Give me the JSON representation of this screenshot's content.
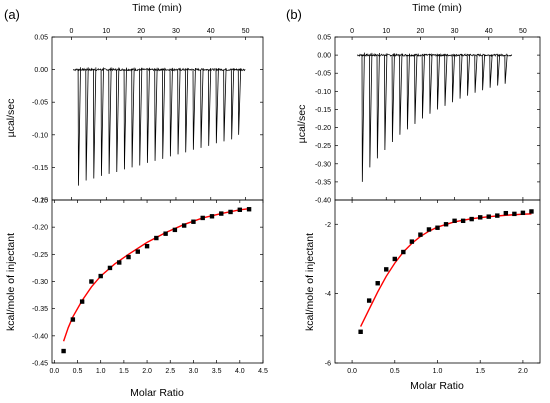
{
  "chart_data": [
    {
      "panel_label": "(a)",
      "type": "scatter",
      "top": {
        "type": "line",
        "xlabel": "Time (min)",
        "ylabel": "µcal/sec",
        "xlim": [
          -5.6,
          55
        ],
        "ylim": [
          -0.2,
          0.05
        ],
        "xticks": [
          "0",
          "10",
          "20",
          "30",
          "40",
          "50"
        ],
        "yticks": [
          "0.05",
          "0.00",
          "-0.05",
          "-0.10",
          "-0.15",
          "-0.20"
        ],
        "baseline": 0.0,
        "injection_times": [
          2.0,
          4.2,
          6.4,
          8.6,
          10.8,
          13.0,
          15.2,
          17.4,
          19.6,
          21.8,
          24.0,
          26.2,
          28.4,
          30.6,
          32.8,
          35.0,
          37.2,
          39.4,
          41.6,
          43.8,
          46.0,
          48.0
        ],
        "peak_minima": [
          -0.178,
          -0.17,
          -0.167,
          -0.163,
          -0.16,
          -0.157,
          -0.153,
          -0.15,
          -0.147,
          -0.143,
          -0.14,
          -0.137,
          -0.133,
          -0.13,
          -0.127,
          -0.123,
          -0.12,
          -0.117,
          -0.113,
          -0.11,
          -0.107,
          -0.1
        ]
      },
      "bottom": {
        "type": "scatter",
        "xlabel": "Molar Ratio",
        "ylabel": "kcal/mole of injectant",
        "xlim": [
          -0.05,
          4.5
        ],
        "ylim": [
          -0.45,
          -0.15
        ],
        "xticks": [
          "0.0",
          "0.5",
          "1.0",
          "1.5",
          "2.0",
          "2.5",
          "3.0",
          "3.5",
          "4.0",
          "4.5"
        ],
        "yticks": [
          "-0.15",
          "-0.20",
          "-0.25",
          "-0.30",
          "-0.35",
          "-0.40",
          "-0.45"
        ],
        "points": {
          "x": [
            0.2,
            0.4,
            0.6,
            0.8,
            1.0,
            1.2,
            1.4,
            1.6,
            1.8,
            2.0,
            2.2,
            2.4,
            2.6,
            2.8,
            3.0,
            3.2,
            3.4,
            3.6,
            3.8,
            4.0,
            4.2
          ],
          "y": [
            -0.428,
            -0.37,
            -0.337,
            -0.3,
            -0.29,
            -0.275,
            -0.265,
            -0.255,
            -0.245,
            -0.235,
            -0.22,
            -0.212,
            -0.205,
            -0.197,
            -0.19,
            -0.183,
            -0.18,
            -0.175,
            -0.172,
            -0.168,
            -0.167
          ]
        },
        "fit": {
          "color": "#ff0000",
          "x": [
            0.2,
            0.3,
            0.4,
            0.6,
            0.8,
            1.0,
            1.3,
            1.6,
            2.0,
            2.4,
            2.8,
            3.2,
            3.6,
            4.0,
            4.2
          ],
          "y": [
            -0.41,
            -0.385,
            -0.365,
            -0.335,
            -0.31,
            -0.29,
            -0.268,
            -0.25,
            -0.228,
            -0.21,
            -0.195,
            -0.183,
            -0.175,
            -0.168,
            -0.166
          ]
        }
      }
    },
    {
      "panel_label": "(b)",
      "type": "scatter",
      "top": {
        "type": "line",
        "xlabel": "Time (min)",
        "ylabel": "µcal/sec",
        "xlim": [
          -5,
          55
        ],
        "ylim": [
          -0.4,
          0.05
        ],
        "xticks": [
          "0",
          "10",
          "20",
          "30",
          "40",
          "50"
        ],
        "yticks": [
          "0.05",
          "0.00",
          "-0.05",
          "-0.10",
          "-0.15",
          "-0.20",
          "-0.25",
          "-0.30",
          "-0.35",
          "-0.40"
        ],
        "baseline": 0.0,
        "injection_times": [
          3.0,
          5.2,
          7.4,
          9.6,
          11.8,
          14.0,
          16.2,
          18.4,
          20.6,
          22.8,
          25.0,
          27.2,
          29.4,
          31.6,
          33.8,
          36.0,
          38.2,
          40.4,
          42.6,
          44.8
        ],
        "peak_minima": [
          -0.35,
          -0.31,
          -0.285,
          -0.262,
          -0.24,
          -0.22,
          -0.205,
          -0.19,
          -0.175,
          -0.162,
          -0.15,
          -0.14,
          -0.13,
          -0.12,
          -0.112,
          -0.104,
          -0.097,
          -0.09,
          -0.084,
          -0.079
        ]
      },
      "bottom": {
        "type": "scatter",
        "xlabel": "Molar Ratio",
        "ylabel": "kcal/mole of injectant",
        "xlim": [
          -0.2,
          2.2
        ],
        "ylim": [
          -6,
          -1.3
        ],
        "xticks": [
          "0.0",
          "0.5",
          "1.0",
          "1.5",
          "2.0"
        ],
        "yticks": [
          "-2",
          "-4",
          "-6"
        ],
        "points": {
          "x": [
            0.1,
            0.2,
            0.3,
            0.4,
            0.5,
            0.6,
            0.7,
            0.8,
            0.9,
            1.0,
            1.1,
            1.2,
            1.3,
            1.4,
            1.5,
            1.6,
            1.7,
            1.8,
            1.9,
            2.0,
            2.1
          ],
          "y": [
            -5.1,
            -4.2,
            -3.7,
            -3.3,
            -3.0,
            -2.8,
            -2.5,
            -2.3,
            -2.15,
            -2.1,
            -2.0,
            -1.9,
            -1.9,
            -1.85,
            -1.8,
            -1.78,
            -1.75,
            -1.68,
            -1.7,
            -1.67,
            -1.63
          ]
        },
        "fit": {
          "color": "#ff0000",
          "x": [
            0.1,
            0.2,
            0.3,
            0.4,
            0.5,
            0.6,
            0.7,
            0.8,
            0.9,
            1.0,
            1.2,
            1.4,
            1.6,
            1.8,
            2.0,
            2.1
          ],
          "y": [
            -4.95,
            -4.45,
            -3.95,
            -3.5,
            -3.12,
            -2.8,
            -2.55,
            -2.35,
            -2.2,
            -2.08,
            -1.93,
            -1.84,
            -1.78,
            -1.74,
            -1.71,
            -1.7
          ]
        }
      }
    }
  ]
}
